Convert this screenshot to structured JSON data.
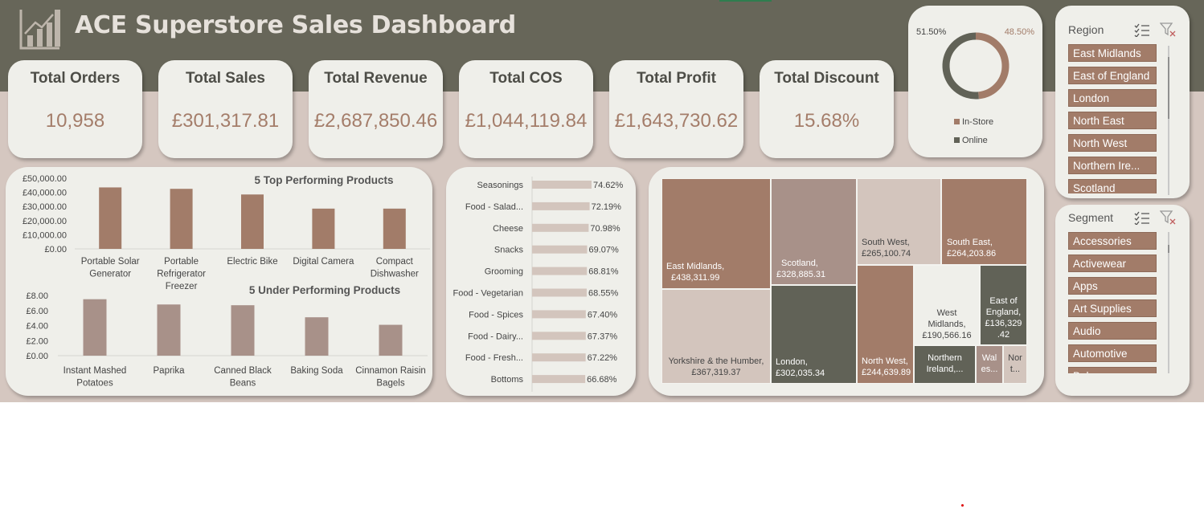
{
  "dashboard": {
    "title": "ACE Superstore Sales Dashboard",
    "colors": {
      "header": "#676659",
      "background": "#d5c7c0",
      "panel": "#efefea",
      "brown": "#a27c69",
      "dark": "#616257",
      "light": "#d3c5bd",
      "taupe": "#a89189"
    }
  },
  "kpis": [
    {
      "title": "Total Orders",
      "value": "10,958"
    },
    {
      "title": "Total Sales",
      "value": "£301,317.81"
    },
    {
      "title": "Total Revenue",
      "value": "£2,687,850.46"
    },
    {
      "title": "Total COS",
      "value": "£1,044,119.84"
    },
    {
      "title": "Total Profit",
      "value": "£1,643,730.62"
    },
    {
      "title": "Total Discount",
      "value": "15.68%"
    }
  ],
  "donut": {
    "labels": {
      "left": "51.50%",
      "right": "48.50%"
    },
    "legend": [
      {
        "name": "In-Store",
        "color": "#a27c69"
      },
      {
        "name": "Online",
        "color": "#616257"
      }
    ],
    "chart_data": {
      "type": "pie",
      "categories": [
        "In-Store",
        "Online"
      ],
      "values": [
        48.5,
        51.5
      ]
    }
  },
  "top_chart": {
    "title": "5 Top Performing Products",
    "yticks": [
      "£50,000.00",
      "£40,000.00",
      "£30,000.00",
      "£20,000.00",
      "£10,000.00",
      "£0.00"
    ],
    "labels": [
      [
        "Portable Solar",
        "Generator"
      ],
      [
        "Portable",
        "Refrigerator",
        "Freezer"
      ],
      [
        "Electric Bike"
      ],
      [
        "Digital Camera"
      ],
      [
        "Compact",
        "Dishwasher"
      ]
    ],
    "chart_data": {
      "type": "bar",
      "categories": [
        "Portable Solar Generator",
        "Portable Refrigerator Freezer",
        "Electric Bike",
        "Digital Camera",
        "Compact Dishwasher"
      ],
      "values": [
        43500,
        42500,
        38500,
        28500,
        28500
      ],
      "ylim": [
        0,
        50000
      ]
    }
  },
  "under_chart": {
    "title": "5 Under Performing Products",
    "yticks": [
      "£8.00",
      "£6.00",
      "£4.00",
      "£2.00",
      "£0.00"
    ],
    "labels": [
      [
        "Instant Mashed",
        "Potatoes"
      ],
      [
        "Paprika"
      ],
      [
        "Canned Black",
        "Beans"
      ],
      [
        "Baking Soda"
      ],
      [
        "Cinnamon Raisin",
        "Bagels"
      ]
    ],
    "chart_data": {
      "type": "bar",
      "categories": [
        "Instant Mashed Potatoes",
        "Paprika",
        "Canned Black Beans",
        "Baking Soda",
        "Cinnamon Raisin Bagels"
      ],
      "values": [
        7.5,
        6.8,
        6.7,
        5.1,
        4.1
      ],
      "ylim": [
        0,
        8
      ]
    }
  },
  "margin_chart": {
    "labels": [
      "Seasonings",
      "Food - Salad...",
      "Cheese",
      "Snacks",
      "Grooming",
      "Food - Vegetarian",
      "Food - Spices",
      "Food - Dairy...",
      "Food - Fresh...",
      "Bottoms"
    ],
    "value_labels": [
      "74.62%",
      "72.19%",
      "70.98%",
      "69.07%",
      "68.81%",
      "68.55%",
      "67.40%",
      "67.37%",
      "67.22%",
      "66.68%"
    ],
    "chart_data": {
      "type": "bar",
      "categories": [
        "Seasonings",
        "Food - Salad...",
        "Cheese",
        "Snacks",
        "Grooming",
        "Food - Vegetarian",
        "Food - Spices",
        "Food - Dairy...",
        "Food - Fresh...",
        "Bottoms"
      ],
      "values": [
        74.62,
        72.19,
        70.98,
        69.07,
        68.81,
        68.55,
        67.4,
        67.37,
        67.22,
        66.68
      ]
    }
  },
  "treemap": {
    "items": [
      {
        "name": "East Midlands,",
        "value": "£438,311.99",
        "color": "#a27c69"
      },
      {
        "name": "Yorkshire & the Humber,",
        "value": "£367,319.37",
        "color": "#d3c5bd"
      },
      {
        "name": "Scotland,",
        "value": "£328,885.31",
        "color": "#a89189"
      },
      {
        "name": "London,",
        "value": "£302,035.34",
        "color": "#616257"
      },
      {
        "name": "South West,",
        "value": "£265,100.74",
        "color": "#d3c5bd"
      },
      {
        "name": "South East,",
        "value": "£264,203.86",
        "color": "#a27c69"
      },
      {
        "name": "North West,",
        "value": "£244,639.89",
        "color": "#a27c69"
      },
      {
        "name": "West Midlands,",
        "value": "£190,566.16",
        "color": "#efefea"
      },
      {
        "name": "East of England,",
        "value": "£136,329.42",
        "color": "#616257"
      },
      {
        "name": "Northern Ireland,...",
        "value": "",
        "color": "#616257"
      },
      {
        "name": "Wales...",
        "value": "",
        "color": "#a89189"
      },
      {
        "name": "North...",
        "value": "",
        "color": "#d3c5bd"
      }
    ],
    "chart_data": {
      "type": "heatmap",
      "categories": [
        "East Midlands",
        "Yorkshire & the Humber",
        "Scotland",
        "London",
        "South West",
        "South East",
        "North West",
        "West Midlands",
        "East of England"
      ],
      "values": [
        438311.99,
        367319.37,
        328885.31,
        302035.34,
        265100.74,
        264203.86,
        244639.89,
        190566.16,
        136329.42
      ]
    }
  },
  "region_slicer": {
    "title": "Region",
    "items": [
      "East Midlands",
      "East of England",
      "London",
      "North East",
      "North West",
      "Northern Ire...",
      "Scotland"
    ]
  },
  "segment_slicer": {
    "title": "Segment",
    "items": [
      "Accessories",
      "Activewear",
      "Apps",
      "Art Supplies",
      "Audio",
      "Automotive",
      "Baby"
    ]
  }
}
